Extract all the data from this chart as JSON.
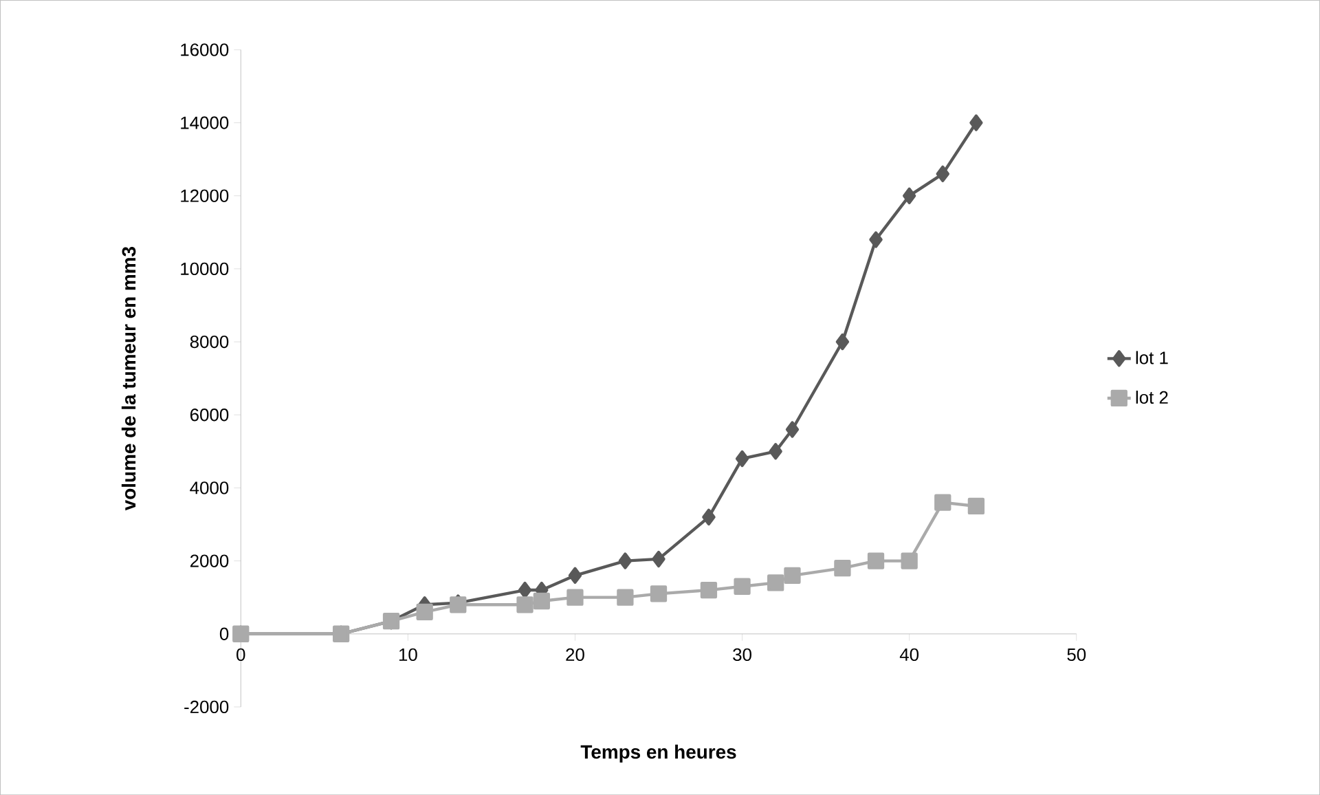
{
  "chart_data": {
    "type": "line",
    "xlabel": "Temps en heures",
    "ylabel": "volume de la tumeur en mm3",
    "xlim": [
      0,
      50
    ],
    "xticks": [
      0,
      10,
      20,
      30,
      40,
      50
    ],
    "ylim": [
      -2000,
      16000
    ],
    "yticks": [
      -2000,
      0,
      2000,
      4000,
      6000,
      8000,
      10000,
      12000,
      14000,
      16000
    ],
    "legend": "right",
    "grid": false,
    "series": [
      {
        "name": "lot 1",
        "color": "#595959",
        "marker": "diamond",
        "x": [
          0,
          6,
          9,
          11,
          13,
          17,
          18,
          20,
          23,
          25,
          28,
          30,
          32,
          33,
          36,
          38,
          40,
          42,
          44
        ],
        "values": [
          0,
          0,
          350,
          800,
          850,
          1200,
          1200,
          1600,
          2000,
          2050,
          3200,
          4800,
          5000,
          5600,
          8000,
          10800,
          12000,
          12600,
          14000
        ]
      },
      {
        "name": "lot 2",
        "color": "#aaaaaa",
        "marker": "square",
        "x": [
          0,
          6,
          9,
          11,
          13,
          17,
          18,
          20,
          23,
          25,
          28,
          30,
          32,
          33,
          36,
          38,
          40,
          42,
          44
        ],
        "values": [
          0,
          0,
          350,
          600,
          800,
          800,
          900,
          1000,
          1000,
          1100,
          1200,
          1300,
          1400,
          1600,
          1800,
          2000,
          2000,
          3600,
          3500
        ]
      }
    ]
  }
}
